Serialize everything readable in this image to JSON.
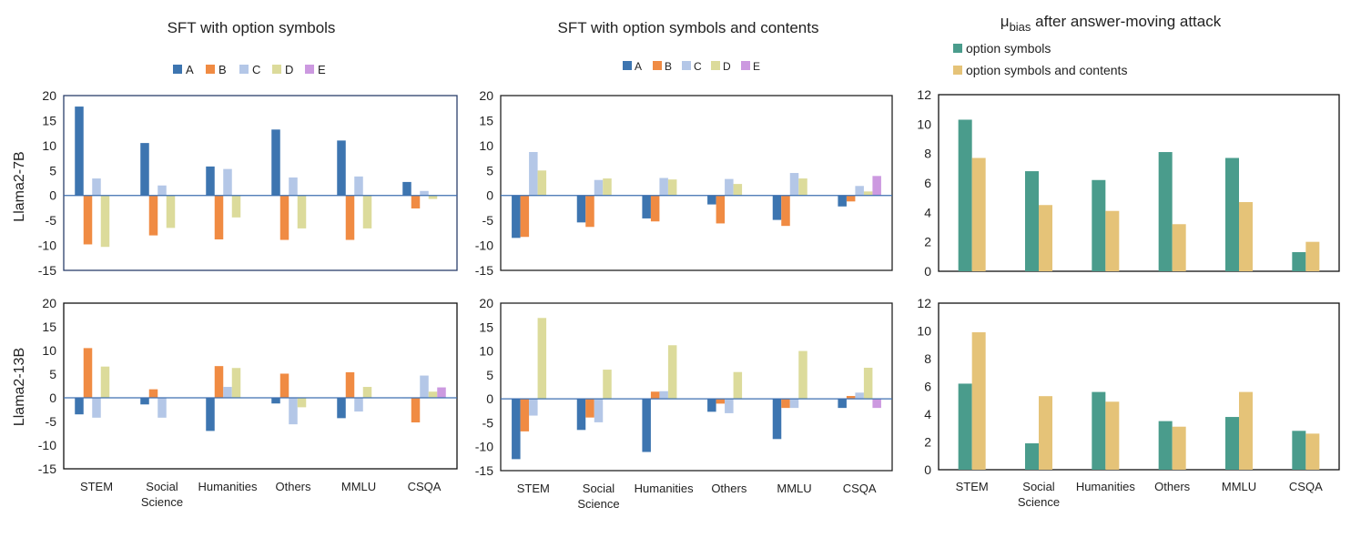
{
  "titles": {
    "col1": "SFT with option symbols",
    "col2": "SFT with option symbols and contents",
    "col3_main": "μ",
    "col3_sub": "bias",
    "col3_rest": " after answer-moving attack"
  },
  "row_labels": [
    "Llama2-7B",
    "Llama2-13B"
  ],
  "categories": [
    "STEM",
    "Social Science",
    "Humanities",
    "Others",
    "MMLU",
    "CSQA"
  ],
  "colors": {
    "A": "#3d75b0",
    "B": "#f08b43",
    "C": "#b4c7e7",
    "D": "#dcdb9b",
    "E": "#cc99e0",
    "symbols": "#4a9c8c",
    "contents": "#e5c378"
  },
  "legend_abcde": [
    "A",
    "B",
    "C",
    "D",
    "E"
  ],
  "legend_bias": [
    "option symbols",
    "option symbols and contents"
  ],
  "chart_data": [
    {
      "type": "bar",
      "row": "Llama2-7B",
      "title": "SFT with option symbols",
      "ylim": [
        -15,
        20
      ],
      "yticks": [
        20,
        15,
        10,
        5,
        0,
        -5,
        -10,
        -15
      ],
      "categories": [
        "STEM",
        "Social Science",
        "Humanities",
        "Others",
        "MMLU",
        "CSQA"
      ],
      "series": [
        {
          "name": "A",
          "values": [
            17.8,
            10.5,
            5.8,
            13.2,
            11.0,
            2.7
          ]
        },
        {
          "name": "B",
          "values": [
            -9.8,
            -8.0,
            -8.8,
            -8.9,
            -8.9,
            -2.6
          ]
        },
        {
          "name": "C",
          "values": [
            3.4,
            2.0,
            5.3,
            3.6,
            3.8,
            0.9
          ]
        },
        {
          "name": "D",
          "values": [
            -10.3,
            -6.5,
            -4.4,
            -6.6,
            -6.6,
            -0.7
          ]
        },
        {
          "name": "E",
          "values": [
            0,
            0,
            0,
            0,
            0,
            0
          ]
        }
      ]
    },
    {
      "type": "bar",
      "row": "Llama2-7B",
      "title": "SFT with option symbols and contents",
      "ylim": [
        -15,
        20
      ],
      "yticks": [
        20,
        15,
        10,
        5,
        0,
        -5,
        -10,
        -15
      ],
      "categories": [
        "STEM",
        "Social Science",
        "Humanities",
        "Others",
        "MMLU",
        "CSQA"
      ],
      "series": [
        {
          "name": "A",
          "values": [
            -8.5,
            -5.4,
            -4.6,
            -1.8,
            -4.9,
            -2.2
          ]
        },
        {
          "name": "B",
          "values": [
            -8.3,
            -6.3,
            -5.2,
            -5.6,
            -6.1,
            -1.2
          ]
        },
        {
          "name": "C",
          "values": [
            8.7,
            3.1,
            3.5,
            3.3,
            4.5,
            1.9
          ]
        },
        {
          "name": "D",
          "values": [
            5.0,
            3.4,
            3.2,
            2.3,
            3.4,
            0.8
          ]
        },
        {
          "name": "E",
          "values": [
            0,
            0,
            0,
            0,
            0,
            3.9
          ]
        }
      ]
    },
    {
      "type": "bar",
      "row": "Llama2-7B",
      "title": "μbias after answer-moving attack",
      "ylim": [
        0,
        12
      ],
      "yticks": [
        12,
        10,
        8,
        6,
        4,
        2,
        0
      ],
      "categories": [
        "STEM",
        "Social Science",
        "Humanities",
        "Others",
        "MMLU",
        "CSQA"
      ],
      "series": [
        {
          "name": "option symbols",
          "values": [
            10.3,
            6.8,
            6.2,
            8.1,
            7.7,
            1.3
          ]
        },
        {
          "name": "option symbols and contents",
          "values": [
            7.7,
            4.5,
            4.1,
            3.2,
            4.7,
            2.0
          ]
        }
      ]
    },
    {
      "type": "bar",
      "row": "Llama2-13B",
      "title": "SFT with option symbols",
      "ylim": [
        -15,
        20
      ],
      "yticks": [
        20,
        15,
        10,
        5,
        0,
        -5,
        -10,
        -15
      ],
      "categories": [
        "STEM",
        "Social Science",
        "Humanities",
        "Others",
        "MMLU",
        "CSQA"
      ],
      "series": [
        {
          "name": "A",
          "values": [
            -3.5,
            -1.4,
            -7.0,
            -1.2,
            -4.3,
            -0.1
          ]
        },
        {
          "name": "B",
          "values": [
            10.5,
            1.8,
            6.7,
            5.1,
            5.4,
            -5.2
          ]
        },
        {
          "name": "C",
          "values": [
            -4.2,
            -4.2,
            2.3,
            -5.6,
            -2.9,
            4.7
          ]
        },
        {
          "name": "D",
          "values": [
            6.6,
            0,
            6.3,
            -2.0,
            2.3,
            1.3
          ]
        },
        {
          "name": "E",
          "values": [
            0,
            0,
            0,
            0,
            0,
            2.2
          ]
        }
      ]
    },
    {
      "type": "bar",
      "row": "Llama2-13B",
      "title": "SFT with option symbols and contents",
      "ylim": [
        -15,
        20
      ],
      "yticks": [
        20,
        15,
        10,
        5,
        0,
        -5,
        -10,
        -15
      ],
      "categories": [
        "STEM",
        "Social Science",
        "Humanities",
        "Others",
        "MMLU",
        "CSQA"
      ],
      "series": [
        {
          "name": "A",
          "values": [
            -12.6,
            -6.5,
            -11.1,
            -2.7,
            -8.4,
            -1.9
          ]
        },
        {
          "name": "B",
          "values": [
            -6.8,
            -3.9,
            1.5,
            -1.0,
            -1.9,
            0.6
          ]
        },
        {
          "name": "C",
          "values": [
            -3.5,
            -4.9,
            1.6,
            -3.0,
            -1.9,
            1.3
          ]
        },
        {
          "name": "D",
          "values": [
            16.9,
            6.1,
            11.2,
            5.6,
            10.0,
            6.5
          ]
        },
        {
          "name": "E",
          "values": [
            0,
            0,
            0,
            0,
            0,
            -1.9
          ]
        }
      ]
    },
    {
      "type": "bar",
      "row": "Llama2-13B",
      "title": "μbias after answer-moving attack",
      "ylim": [
        0,
        12
      ],
      "yticks": [
        12,
        10,
        8,
        6,
        4,
        2,
        0
      ],
      "categories": [
        "STEM",
        "Social Science",
        "Humanities",
        "Others",
        "MMLU",
        "CSQA"
      ],
      "series": [
        {
          "name": "option symbols",
          "values": [
            6.2,
            1.9,
            5.6,
            3.5,
            3.8,
            2.8
          ]
        },
        {
          "name": "option symbols and contents",
          "values": [
            9.9,
            5.3,
            4.9,
            3.1,
            5.6,
            2.6
          ]
        }
      ]
    }
  ]
}
